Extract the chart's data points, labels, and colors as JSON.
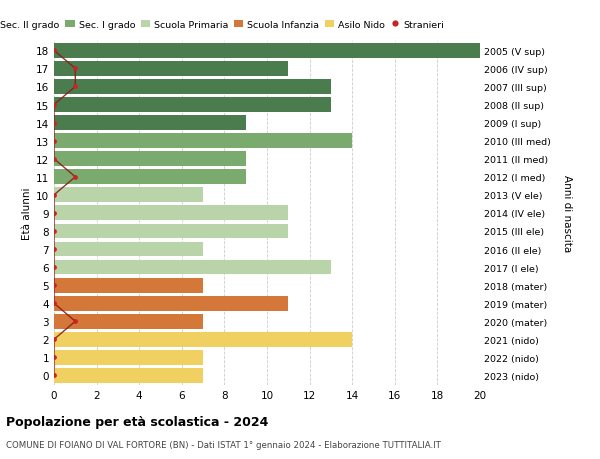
{
  "ages": [
    18,
    17,
    16,
    15,
    14,
    13,
    12,
    11,
    10,
    9,
    8,
    7,
    6,
    5,
    4,
    3,
    2,
    1,
    0
  ],
  "right_labels": [
    "2005 (V sup)",
    "2006 (IV sup)",
    "2007 (III sup)",
    "2008 (II sup)",
    "2009 (I sup)",
    "2010 (III med)",
    "2011 (II med)",
    "2012 (I med)",
    "2013 (V ele)",
    "2014 (IV ele)",
    "2015 (III ele)",
    "2016 (II ele)",
    "2017 (I ele)",
    "2018 (mater)",
    "2019 (mater)",
    "2020 (mater)",
    "2021 (nido)",
    "2022 (nido)",
    "2023 (nido)"
  ],
  "bar_values": [
    20,
    11,
    13,
    13,
    9,
    14,
    9,
    9,
    7,
    11,
    11,
    7,
    13,
    7,
    11,
    7,
    14,
    7,
    7
  ],
  "bar_colors": [
    "#4a7c4e",
    "#4a7c4e",
    "#4a7c4e",
    "#4a7c4e",
    "#4a7c4e",
    "#7aaa6e",
    "#7aaa6e",
    "#7aaa6e",
    "#b8d4a8",
    "#b8d4a8",
    "#b8d4a8",
    "#b8d4a8",
    "#b8d4a8",
    "#d4783a",
    "#d4783a",
    "#d4783a",
    "#f0d060",
    "#f0d060",
    "#f0d060"
  ],
  "stranieri_values": [
    0,
    1,
    1,
    0,
    0,
    0,
    0,
    1,
    0,
    0,
    0,
    0,
    0,
    0,
    0,
    1,
    0,
    0,
    0
  ],
  "legend_labels": [
    "Sec. II grado",
    "Sec. I grado",
    "Scuola Primaria",
    "Scuola Infanzia",
    "Asilo Nido",
    "Stranieri"
  ],
  "legend_colors": [
    "#4a7c4e",
    "#7aaa6e",
    "#b8d4a8",
    "#d4783a",
    "#f0d060",
    "#cc2222"
  ],
  "ylabel": "Età alunni",
  "right_ylabel": "Anni di nascita",
  "title": "Popolazione per età scolastica - 2024",
  "subtitle": "COMUNE DI FOIANO DI VAL FORTORE (BN) - Dati ISTAT 1° gennaio 2024 - Elaborazione TUTTITALIA.IT",
  "xlim": [
    0,
    20
  ],
  "xticks": [
    0,
    2,
    4,
    6,
    8,
    10,
    12,
    14,
    16,
    18,
    20
  ],
  "bg_color": "#ffffff",
  "grid_color": "#cccccc"
}
